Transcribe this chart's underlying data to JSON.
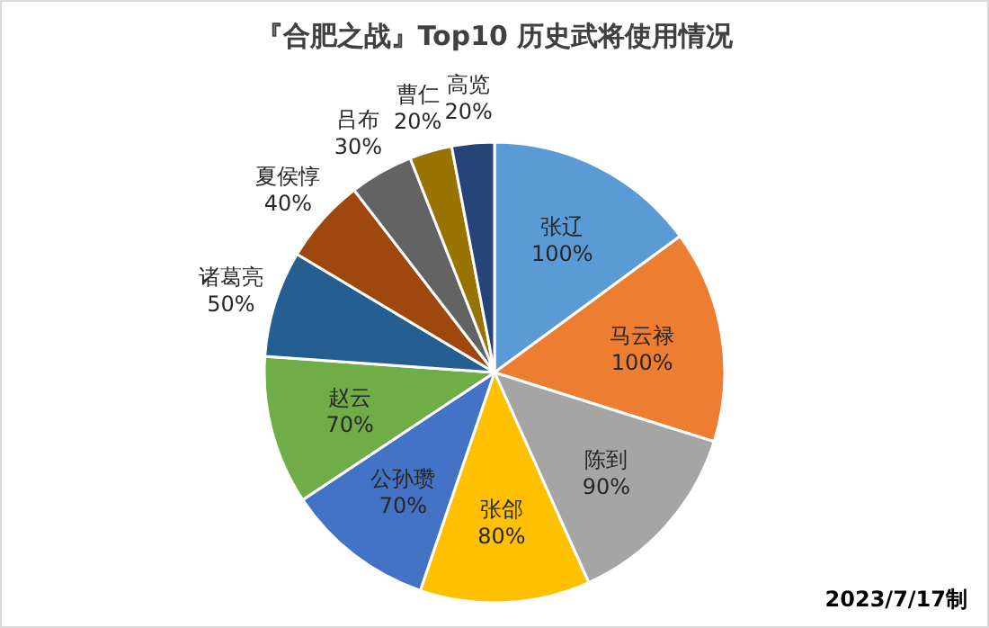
{
  "chart_data": {
    "type": "pie",
    "title": "『合肥之战』Top10 历史武将使用情况",
    "categories": [
      "张辽",
      "马云禄",
      "陈到",
      "张郃",
      "公孙瓒",
      "赵云",
      "诸葛亮",
      "夏侯惇",
      "吕布",
      "曹仁",
      "高览"
    ],
    "values": [
      100,
      100,
      90,
      80,
      70,
      70,
      50,
      40,
      30,
      20,
      20
    ],
    "colors": [
      "#5b9bd5",
      "#ed7d31",
      "#a5a5a5",
      "#ffc000",
      "#4472c4",
      "#70ad47",
      "#255e91",
      "#9e480e",
      "#636363",
      "#997300",
      "#264478"
    ],
    "value_labels": [
      "100%",
      "100%",
      "90%",
      "80%",
      "70%",
      "70%",
      "50%",
      "40%",
      "30%",
      "20%",
      "20%"
    ],
    "annotations": [
      "2023/7/17制"
    ]
  }
}
